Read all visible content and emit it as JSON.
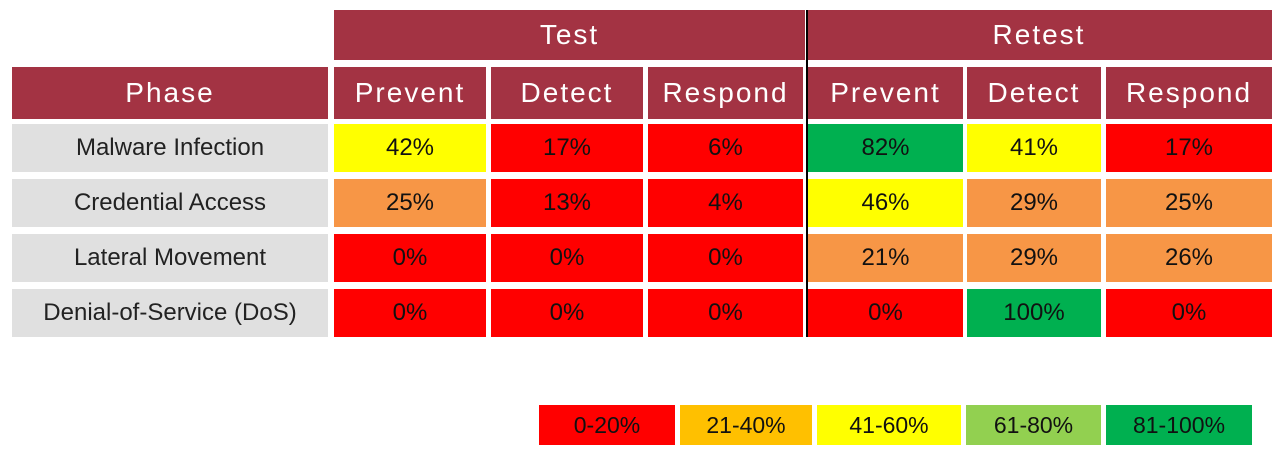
{
  "chart_data": {
    "type": "table",
    "groups": [
      "Test",
      "Retest"
    ],
    "phase_header": "Phase",
    "columns": [
      "Prevent",
      "Detect",
      "Respond",
      "Prevent",
      "Detect",
      "Respond"
    ],
    "rows": [
      {
        "label": "Malware Infection",
        "values": [
          "42%",
          "17%",
          "6%",
          "82%",
          "41%",
          "17%"
        ]
      },
      {
        "label": "Credential Access",
        "values": [
          "25%",
          "13%",
          "4%",
          "46%",
          "29%",
          "25%"
        ]
      },
      {
        "label": "Lateral Movement",
        "values": [
          "0%",
          "0%",
          "0%",
          "21%",
          "29%",
          "26%"
        ]
      },
      {
        "label": "Denial-of-Service (DoS)",
        "values": [
          "0%",
          "0%",
          "0%",
          "0%",
          "100%",
          "0%"
        ]
      }
    ],
    "legend": [
      {
        "label": "0-20%",
        "color": "#ff0000"
      },
      {
        "label": "21-40%",
        "color": "#ffc000"
      },
      {
        "label": "41-60%",
        "color": "#ffff00"
      },
      {
        "label": "61-80%",
        "color": "#92d050"
      },
      {
        "label": "81-100%",
        "color": "#00b050"
      }
    ],
    "colors": {
      "header": "#a33343",
      "phase_bg": "#e0e0e0",
      "red": "#ff0000",
      "orange": "#f79646",
      "yellow": "#ffff00",
      "green": "#00b050"
    },
    "cell_colors": [
      [
        "yellow",
        "red",
        "red",
        "green",
        "yellow",
        "red"
      ],
      [
        "orange",
        "red",
        "red",
        "yellow",
        "orange",
        "orange"
      ],
      [
        "red",
        "red",
        "red",
        "orange",
        "orange",
        "orange"
      ],
      [
        "red",
        "red",
        "red",
        "red",
        "green",
        "red"
      ]
    ]
  }
}
